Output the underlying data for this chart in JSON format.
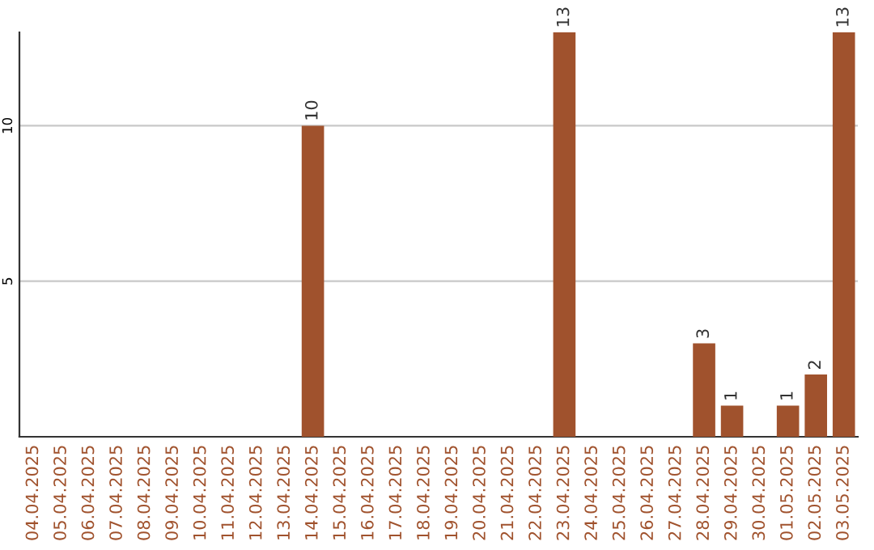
{
  "chart_data": {
    "type": "bar",
    "categories": [
      "04.04.2025",
      "05.04.2025",
      "06.04.2025",
      "07.04.2025",
      "08.04.2025",
      "09.04.2025",
      "10.04.2025",
      "11.04.2025",
      "12.04.2025",
      "13.04.2025",
      "14.04.2025",
      "15.04.2025",
      "16.04.2025",
      "17.04.2025",
      "18.04.2025",
      "19.04.2025",
      "20.04.2025",
      "21.04.2025",
      "22.04.2025",
      "23.04.2025",
      "24.04.2025",
      "25.04.2025",
      "26.04.2025",
      "27.04.2025",
      "28.04.2025",
      "29.04.2025",
      "30.04.2025",
      "01.05.2025",
      "02.05.2025",
      "03.05.2025"
    ],
    "values": [
      0,
      0,
      0,
      0,
      0,
      0,
      0,
      0,
      0,
      0,
      10,
      0,
      0,
      0,
      0,
      0,
      0,
      0,
      0,
      13,
      0,
      0,
      0,
      0,
      3,
      1,
      0,
      1,
      2,
      13
    ],
    "value_labels": [
      null,
      null,
      null,
      null,
      null,
      null,
      null,
      null,
      null,
      null,
      "10",
      null,
      null,
      null,
      null,
      null,
      null,
      null,
      null,
      "13",
      null,
      null,
      null,
      null,
      "3",
      "1",
      null,
      "1",
      "2",
      "13"
    ],
    "color": "#a0522d",
    "ylim": [
      0,
      13
    ],
    "yticks": [
      5,
      10
    ],
    "grid": "y"
  }
}
